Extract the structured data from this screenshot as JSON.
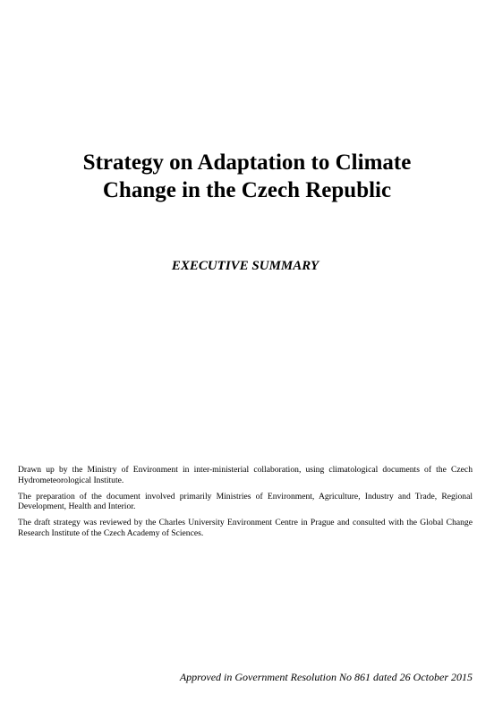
{
  "document": {
    "title_line1": "Strategy on Adaptation to Climate",
    "title_line2": "Change in the Czech Republic",
    "subtitle": "EXECUTIVE SUMMARY",
    "paragraphs": [
      "Drawn up by the Ministry of Environment in inter-ministerial collaboration, using climatological documents of the Czech Hydrometeorological Institute.",
      "The preparation of the document involved primarily Ministries of Environment, Agriculture, Industry and Trade, Regional Development, Health and Interior.",
      "The draft strategy was reviewed by the Charles University Environment Centre in Prague and consulted with the Global Change Research Institute of the Czech Academy of Sciences."
    ],
    "approval": "Approved in Government Resolution No 861 dated 26 October 2015"
  }
}
